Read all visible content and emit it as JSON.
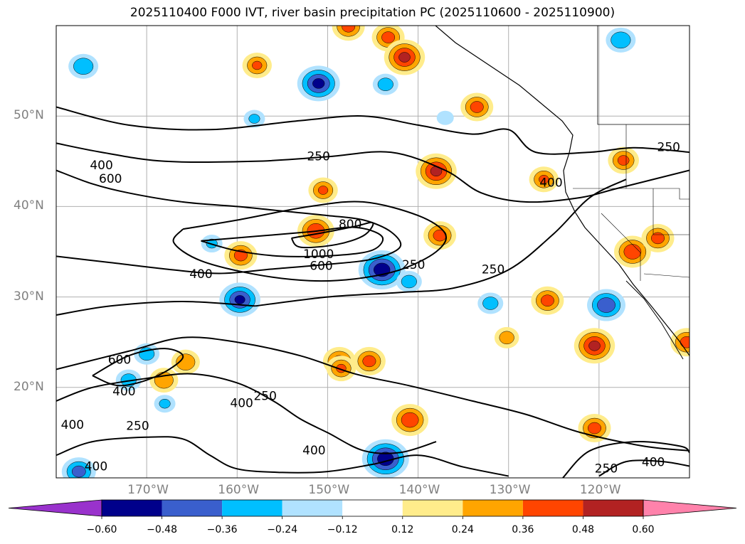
{
  "title": "2025110400 F000 IVT, river basin precipitation PC (2025110600 - 2025110900)",
  "map": {
    "lon_range": [
      -180,
      -110
    ],
    "lat_range": [
      10,
      60
    ],
    "lat_labels": [
      {
        "lat": 50,
        "text": "50°N"
      },
      {
        "lat": 40,
        "text": "40°N"
      },
      {
        "lat": 30,
        "text": "30°N"
      },
      {
        "lat": 20,
        "text": "20°N"
      }
    ],
    "lon_labels": [
      {
        "lon": -170,
        "text": "170°W"
      },
      {
        "lon": -160,
        "text": "160°W"
      },
      {
        "lon": -150,
        "text": "150°W"
      },
      {
        "lon": -140,
        "text": "140°W"
      },
      {
        "lon": -130,
        "text": "130°W"
      },
      {
        "lon": -120,
        "text": "120°W"
      }
    ],
    "contour_labels": [
      {
        "text": "400",
        "lon": -175.0,
        "lat": 44.5
      },
      {
        "text": "600",
        "lon": -174.0,
        "lat": 43.0
      },
      {
        "text": "250",
        "lon": -151.0,
        "lat": 45.5
      },
      {
        "text": "800",
        "lon": -147.5,
        "lat": 38.0
      },
      {
        "text": "1000",
        "lon": -151.0,
        "lat": 34.7
      },
      {
        "text": "600",
        "lon": -150.7,
        "lat": 33.4
      },
      {
        "text": "400",
        "lon": -164.0,
        "lat": 32.5
      },
      {
        "text": "250",
        "lon": -140.5,
        "lat": 33.5
      },
      {
        "text": "250",
        "lon": -131.7,
        "lat": 33.0
      },
      {
        "text": "400",
        "lon": -125.3,
        "lat": 42.6
      },
      {
        "text": "250",
        "lon": -112.3,
        "lat": 46.5
      },
      {
        "text": "600",
        "lon": -173.0,
        "lat": 23.0
      },
      {
        "text": "400",
        "lon": -172.5,
        "lat": 19.5
      },
      {
        "text": "250",
        "lon": -156.9,
        "lat": 19.0
      },
      {
        "text": "400",
        "lon": -159.5,
        "lat": 18.2
      },
      {
        "text": "250",
        "lon": -171.0,
        "lat": 15.7
      },
      {
        "text": "400",
        "lon": -178.2,
        "lat": 15.8
      },
      {
        "text": "400",
        "lon": -175.6,
        "lat": 11.2
      },
      {
        "text": "400",
        "lon": -151.5,
        "lat": 13.0
      },
      {
        "text": "250",
        "lon": -119.2,
        "lat": 11.0
      },
      {
        "text": "400",
        "lon": -114.0,
        "lat": 11.7
      }
    ],
    "precip_blobs": [
      {
        "lon": -138.0,
        "lat": 43.9,
        "value": 0.5
      },
      {
        "lon": -137.6,
        "lat": 36.8,
        "value": 0.4
      },
      {
        "lon": -151.3,
        "lat": 37.3,
        "value": 0.45
      },
      {
        "lon": -159.6,
        "lat": 34.6,
        "value": 0.4
      },
      {
        "lon": -120.5,
        "lat": 24.6,
        "value": 0.5
      },
      {
        "lon": -116.3,
        "lat": 35.0,
        "value": 0.45
      },
      {
        "lon": -113.5,
        "lat": 36.5,
        "value": 0.4
      },
      {
        "lon": -120.5,
        "lat": 15.5,
        "value": 0.4
      },
      {
        "lon": -130.2,
        "lat": 25.5,
        "value": 0.3
      },
      {
        "lon": -140.9,
        "lat": 16.4,
        "value": 0.45
      },
      {
        "lon": -148.7,
        "lat": 22.9,
        "value": 0.4
      },
      {
        "lon": -145.4,
        "lat": 22.9,
        "value": 0.4
      },
      {
        "lon": -165.7,
        "lat": 22.8,
        "value": 0.35
      },
      {
        "lon": -168.1,
        "lat": 20.8,
        "value": 0.35
      },
      {
        "lon": -148.5,
        "lat": 22.1,
        "value": 0.36
      },
      {
        "lon": -143.3,
        "lat": 58.7,
        "value": 0.4
      },
      {
        "lon": -141.5,
        "lat": 56.5,
        "value": 0.5
      },
      {
        "lon": -147.7,
        "lat": 59.9,
        "value": 0.4
      },
      {
        "lon": -133.5,
        "lat": 51.0,
        "value": 0.4
      },
      {
        "lon": -157.8,
        "lat": 55.6,
        "value": 0.36
      },
      {
        "lon": -150.5,
        "lat": 41.8,
        "value": 0.36
      },
      {
        "lon": -125.7,
        "lat": 29.6,
        "value": 0.4
      },
      {
        "lon": -110.3,
        "lat": 25.0,
        "value": 0.4
      },
      {
        "lon": -126.1,
        "lat": 43.0,
        "value": 0.36
      },
      {
        "lon": -117.3,
        "lat": 45.1,
        "value": 0.38
      }
    ],
    "neg_blobs": [
      {
        "lon": -159.7,
        "lat": 29.7,
        "value": -0.48
      },
      {
        "lon": -144.0,
        "lat": 33.0,
        "value": -0.55
      },
      {
        "lon": -143.6,
        "lat": 12.1,
        "value": -0.55
      },
      {
        "lon": -151.0,
        "lat": 53.6,
        "value": -0.5
      },
      {
        "lon": -119.2,
        "lat": 29.1,
        "value": -0.45
      },
      {
        "lon": -177.0,
        "lat": 55.5,
        "value": -0.35
      },
      {
        "lon": -170.0,
        "lat": 23.7,
        "value": -0.3
      },
      {
        "lon": -172.0,
        "lat": 20.8,
        "value": -0.3
      },
      {
        "lon": -168.0,
        "lat": 18.2,
        "value": -0.25
      },
      {
        "lon": -177.5,
        "lat": 10.7,
        "value": -0.4
      },
      {
        "lon": -132.0,
        "lat": 29.3,
        "value": -0.3
      },
      {
        "lon": -117.6,
        "lat": 58.4,
        "value": -0.35
      },
      {
        "lon": -143.6,
        "lat": 53.5,
        "value": -0.3
      },
      {
        "lon": -158.1,
        "lat": 49.7,
        "value": -0.25
      },
      {
        "lon": -162.8,
        "lat": 35.9,
        "value": -0.25
      },
      {
        "lon": -141.0,
        "lat": 31.7,
        "value": -0.3
      },
      {
        "lon": -137.0,
        "lat": 49.8,
        "value": -0.2
      }
    ],
    "ivt_contours": [
      {
        "level": 250,
        "points": [
          [
            -180,
            51
          ],
          [
            -172,
            49
          ],
          [
            -163,
            48.5
          ],
          [
            -153,
            49.5
          ],
          [
            -146,
            50
          ],
          [
            -140,
            49
          ],
          [
            -134,
            48
          ],
          [
            -130,
            48.5
          ],
          [
            -127,
            46
          ],
          [
            -121,
            46
          ],
          [
            -116,
            46.5
          ],
          [
            -110,
            46
          ]
        ]
      },
      {
        "level": 250,
        "points": [
          [
            -180,
            47
          ],
          [
            -175,
            46
          ],
          [
            -168,
            45
          ],
          [
            -158,
            45
          ],
          [
            -150,
            45.5
          ],
          [
            -143,
            46
          ],
          [
            -137,
            44
          ],
          [
            -133,
            41.5
          ],
          [
            -128,
            40.5
          ],
          [
            -122,
            41
          ],
          [
            -118,
            42
          ],
          [
            -110,
            44
          ]
        ]
      },
      {
        "level": 250,
        "points": [
          [
            -166,
            37.5
          ],
          [
            -160,
            38.5
          ],
          [
            -152,
            40
          ],
          [
            -146,
            40.5
          ],
          [
            -140,
            39
          ],
          [
            -137,
            37
          ],
          [
            -138,
            35
          ],
          [
            -142,
            33
          ],
          [
            -147,
            32
          ],
          [
            -152,
            31.8
          ],
          [
            -158,
            32.5
          ],
          [
            -164,
            34
          ],
          [
            -167,
            36
          ],
          [
            -166,
            37.5
          ]
        ]
      },
      {
        "level": 250,
        "points": [
          [
            -158,
            29
          ],
          [
            -150,
            30
          ],
          [
            -142,
            30.5
          ],
          [
            -136,
            31
          ],
          [
            -130,
            33
          ],
          [
            -125,
            37
          ],
          [
            -121,
            41
          ],
          [
            -117,
            43
          ]
        ]
      },
      {
        "level": 250,
        "points": [
          [
            -180,
            28
          ],
          [
            -174,
            29
          ],
          [
            -166,
            29.5
          ],
          [
            -158,
            29
          ]
        ]
      },
      {
        "level": 400,
        "points": [
          [
            -180,
            44
          ],
          [
            -176,
            42.5
          ],
          [
            -172,
            41.5
          ],
          [
            -166,
            40.5
          ],
          [
            -160,
            40
          ],
          [
            -155,
            39.5
          ],
          [
            -150,
            39
          ],
          [
            -146,
            38.5
          ],
          [
            -143,
            37.2
          ],
          [
            -142,
            35.5
          ],
          [
            -145,
            34.2
          ],
          [
            -150,
            33.6
          ],
          [
            -156,
            33.1
          ],
          [
            -162,
            32.6
          ],
          [
            -168,
            33.1
          ],
          [
            -174,
            33.8
          ],
          [
            -180,
            34.5
          ]
        ]
      },
      {
        "level": 600,
        "points": [
          [
            -164,
            36.2
          ],
          [
            -158,
            36.7
          ],
          [
            -152,
            37.2
          ],
          [
            -147,
            37.7
          ],
          [
            -144,
            36.7
          ],
          [
            -145,
            35.2
          ],
          [
            -149,
            34.6
          ],
          [
            -155,
            34.5
          ],
          [
            -160,
            35.1
          ],
          [
            -164,
            36.2
          ]
        ]
      },
      {
        "level": 800,
        "points": [
          [
            -154,
            36.5
          ],
          [
            -150,
            37.2
          ],
          [
            -147,
            37.8
          ],
          [
            -145,
            38.2
          ],
          [
            -146,
            36.8
          ],
          [
            -149,
            35.8
          ],
          [
            -153,
            35.5
          ],
          [
            -154,
            36.5
          ]
        ]
      },
      {
        "level": 250,
        "points": [
          [
            -180,
            22
          ],
          [
            -172,
            24
          ],
          [
            -166,
            25.5
          ],
          [
            -160,
            25
          ],
          [
            -153,
            23.5
          ],
          [
            -147,
            21.5
          ],
          [
            -141,
            20.2
          ],
          [
            -134,
            18.5
          ],
          [
            -128,
            17
          ],
          [
            -122,
            15
          ],
          [
            -115,
            13.5
          ],
          [
            -110,
            13
          ]
        ]
      },
      {
        "level": 400,
        "points": [
          [
            -180,
            18.5
          ],
          [
            -176,
            20
          ],
          [
            -170,
            21
          ],
          [
            -165,
            21.5
          ],
          [
            -160,
            20.5
          ],
          [
            -156,
            18.5
          ],
          [
            -153,
            16.5
          ],
          [
            -150,
            15
          ],
          [
            -146,
            13
          ],
          [
            -142,
            12.8
          ],
          [
            -138,
            14
          ]
        ]
      },
      {
        "level": 600,
        "points": [
          [
            -176,
            21.3
          ],
          [
            -172,
            23.5
          ],
          [
            -168,
            24.3
          ],
          [
            -166,
            23.3
          ],
          [
            -169,
            21.2
          ],
          [
            -173,
            20.2
          ],
          [
            -176,
            21.3
          ]
        ]
      },
      {
        "level": 250,
        "points": [
          [
            -124,
            10
          ],
          [
            -121,
            13
          ],
          [
            -116,
            14
          ],
          [
            -111,
            13.5
          ],
          [
            -110,
            12.8
          ]
        ]
      },
      {
        "level": 400,
        "points": [
          [
            -120,
            10.2
          ],
          [
            -117,
            11.8
          ],
          [
            -113,
            11.8
          ],
          [
            -110,
            11.3
          ]
        ]
      },
      {
        "level": 250,
        "points": [
          [
            -180,
            12.5
          ],
          [
            -176,
            14
          ],
          [
            -170,
            14.5
          ],
          [
            -166,
            14.3
          ],
          [
            -163,
            12.5
          ],
          [
            -160,
            11
          ],
          [
            -155,
            10.6
          ],
          [
            -150,
            10.7
          ],
          [
            -145,
            11.5
          ],
          [
            -140,
            12.5
          ],
          [
            -135,
            11.2
          ],
          [
            -130,
            10.2
          ]
        ]
      }
    ]
  },
  "colorbar": {
    "bounds": [
      -0.72,
      -0.6,
      -0.48,
      -0.36,
      -0.24,
      -0.12,
      0.12,
      0.24,
      0.36,
      0.48,
      0.6,
      0.72
    ],
    "colors": [
      "#9932cc",
      "#00008b",
      "#3a5fcd",
      "#00bfff",
      "#b0e2ff",
      "#ffffff",
      "#ffec8b",
      "#ffa500",
      "#ff4500",
      "#b22222",
      "#ff82ab"
    ],
    "tick_labels": [
      "−0.60",
      "−0.48",
      "−0.36",
      "−0.24",
      "−0.12",
      "0.12",
      "0.24",
      "0.36",
      "0.48",
      "0.60"
    ]
  }
}
